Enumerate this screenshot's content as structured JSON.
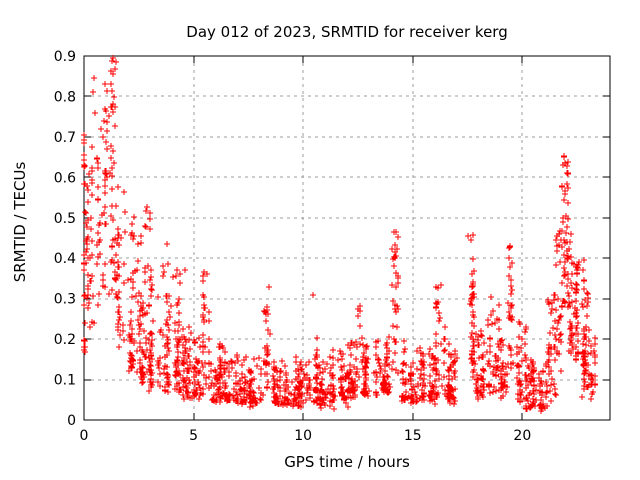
{
  "chart_data": {
    "type": "scatter",
    "title": "Day 012 of 2023, SRMTID for receiver kerg",
    "xlabel": "GPS time / hours",
    "ylabel": "SRMTID / TECUs",
    "xlim": [
      0,
      24
    ],
    "ylim": [
      0,
      0.9
    ],
    "xticks": [
      0,
      5,
      10,
      15,
      20
    ],
    "xtick_labels": [
      "0",
      "5",
      "10",
      "15",
      "20"
    ],
    "yticks": [
      0,
      0.1,
      0.2,
      0.3,
      0.4,
      0.5,
      0.6,
      0.7,
      0.8,
      0.9
    ],
    "ytick_labels": [
      "0",
      "0.1",
      "0.2",
      "0.3",
      "0.4",
      "0.5",
      "0.6",
      "0.7",
      "0.8",
      "0.9"
    ],
    "grid": true,
    "legend": "none",
    "marker": "plus",
    "marker_size_px": 7,
    "marker_color": "#ff0000",
    "grid_color": "#9c9c9c",
    "axis_color": "#000000",
    "background_color": "#ffffff",
    "seed": 7,
    "series": [
      {
        "name": "SRMTID",
        "note": "dense scatter approximated by per-interval envelopes [t0,t1,count,ymin,ymax,bias]; bias>1 biases low, <1 biases high",
        "segments": [
          [
            0.0,
            0.18,
            28,
            0.17,
            0.7,
            1.5
          ],
          [
            0.0,
            0.18,
            16,
            0.3,
            0.52,
            1.0
          ],
          [
            0.18,
            0.6,
            26,
            0.22,
            0.67,
            1.4
          ],
          [
            0.6,
            0.95,
            28,
            0.28,
            0.67,
            1.2
          ],
          [
            0.95,
            1.45,
            58,
            0.3,
            0.89,
            0.8
          ],
          [
            1.45,
            1.85,
            36,
            0.18,
            0.58,
            1.3
          ],
          [
            1.85,
            2.28,
            40,
            0.12,
            0.5,
            1.5
          ],
          [
            2.28,
            2.78,
            45,
            0.1,
            0.45,
            1.6
          ],
          [
            2.78,
            3.02,
            10,
            0.36,
            0.54,
            1.0
          ],
          [
            2.78,
            3.38,
            48,
            0.08,
            0.4,
            1.7
          ],
          [
            3.38,
            3.95,
            48,
            0.07,
            0.33,
            1.7
          ],
          [
            3.6,
            3.85,
            6,
            0.3,
            0.44,
            1.0
          ],
          [
            3.95,
            4.42,
            42,
            0.07,
            0.3,
            1.6
          ],
          [
            4.05,
            4.4,
            6,
            0.28,
            0.38,
            1.0
          ],
          [
            4.42,
            5.0,
            52,
            0.06,
            0.24,
            1.8
          ],
          [
            5.0,
            5.45,
            40,
            0.06,
            0.2,
            1.8
          ],
          [
            5.45,
            5.8,
            30,
            0.08,
            0.36,
            1.1
          ],
          [
            5.8,
            6.4,
            50,
            0.05,
            0.2,
            1.9
          ],
          [
            6.4,
            7.2,
            60,
            0.05,
            0.17,
            1.9
          ],
          [
            7.2,
            8.15,
            68,
            0.04,
            0.16,
            1.9
          ],
          [
            8.15,
            8.55,
            28,
            0.07,
            0.28,
            1.2
          ],
          [
            8.55,
            9.4,
            66,
            0.04,
            0.16,
            1.9
          ],
          [
            9.4,
            10.25,
            66,
            0.04,
            0.16,
            1.9
          ],
          [
            10.25,
            10.65,
            32,
            0.05,
            0.22,
            1.5
          ],
          [
            10.65,
            11.35,
            56,
            0.04,
            0.15,
            1.9
          ],
          [
            11.35,
            12.05,
            56,
            0.05,
            0.17,
            1.8
          ],
          [
            12.05,
            12.75,
            56,
            0.06,
            0.2,
            1.7
          ],
          [
            12.5,
            12.66,
            5,
            0.22,
            0.31,
            1.0
          ],
          [
            12.75,
            13.5,
            60,
            0.06,
            0.2,
            1.7
          ],
          [
            13.5,
            14.05,
            45,
            0.07,
            0.22,
            1.6
          ],
          [
            14.05,
            14.5,
            34,
            0.1,
            0.47,
            1.2
          ],
          [
            14.5,
            15.25,
            56,
            0.05,
            0.18,
            1.8
          ],
          [
            15.25,
            16.05,
            60,
            0.05,
            0.18,
            1.8
          ],
          [
            16.05,
            16.5,
            36,
            0.06,
            0.33,
            1.5
          ],
          [
            16.5,
            17.25,
            56,
            0.05,
            0.2,
            1.8
          ],
          [
            17.25,
            17.8,
            46,
            0.1,
            0.47,
            1.0
          ],
          [
            17.8,
            18.4,
            48,
            0.06,
            0.22,
            1.7
          ],
          [
            18.4,
            18.95,
            44,
            0.07,
            0.3,
            1.6
          ],
          [
            18.95,
            19.3,
            30,
            0.06,
            0.2,
            1.7
          ],
          [
            19.3,
            19.65,
            28,
            0.12,
            0.43,
            1.0
          ],
          [
            19.65,
            20.15,
            42,
            0.05,
            0.25,
            1.8
          ],
          [
            20.15,
            20.75,
            50,
            0.03,
            0.15,
            1.8
          ],
          [
            20.75,
            21.15,
            36,
            0.03,
            0.14,
            1.6
          ],
          [
            21.15,
            21.55,
            38,
            0.05,
            0.32,
            1.3
          ],
          [
            21.55,
            21.8,
            30,
            0.12,
            0.5,
            0.9
          ],
          [
            21.8,
            22.1,
            42,
            0.28,
            0.65,
            0.9
          ],
          [
            22.1,
            22.45,
            44,
            0.17,
            0.48,
            1.3
          ],
          [
            22.45,
            22.8,
            44,
            0.14,
            0.42,
            1.3
          ],
          [
            22.8,
            23.1,
            36,
            0.08,
            0.32,
            1.5
          ],
          [
            23.1,
            23.32,
            20,
            0.06,
            0.2,
            1.5
          ]
        ],
        "outliers": [
          [
            0.42,
            0.81
          ],
          [
            0.46,
            0.845
          ],
          [
            0.52,
            0.76
          ],
          [
            0.78,
            0.72
          ],
          [
            0.88,
            0.7
          ],
          [
            0.93,
            0.74
          ],
          [
            1.22,
            0.862
          ],
          [
            1.28,
            0.888
          ],
          [
            4.62,
            0.37
          ],
          [
            5.62,
            0.36
          ],
          [
            8.42,
            0.33
          ],
          [
            10.45,
            0.31
          ],
          [
            11.3,
            0.045
          ],
          [
            11.42,
            0.027
          ],
          [
            14.25,
            0.465
          ],
          [
            16.3,
            0.335
          ],
          [
            17.5,
            0.455
          ],
          [
            18.55,
            0.305
          ],
          [
            19.45,
            0.43
          ],
          [
            21.88,
            0.652
          ],
          [
            21.95,
            0.635
          ],
          [
            22.74,
            0.058
          ]
        ]
      }
    ]
  }
}
